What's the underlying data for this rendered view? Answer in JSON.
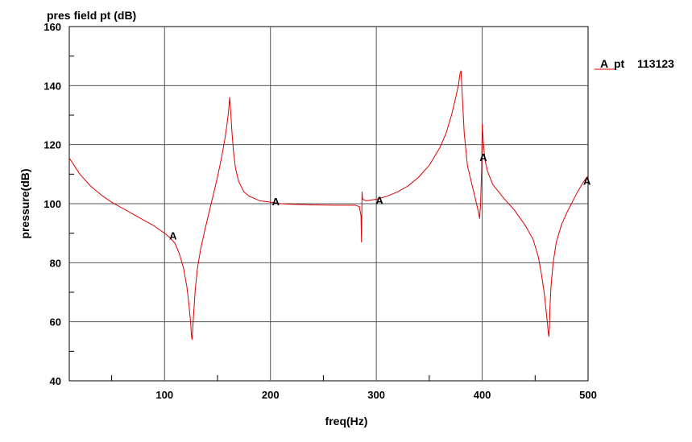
{
  "chart_data": {
    "type": "line",
    "title": "pres field pt (dB)",
    "xlabel": "freq(Hz)",
    "ylabel": "pressure(dB)",
    "xlim": [
      10,
      500
    ],
    "ylim": [
      40,
      160
    ],
    "x_ticks": [
      100,
      200,
      300,
      400,
      500
    ],
    "y_ticks": [
      40,
      60,
      80,
      100,
      120,
      140,
      160
    ],
    "grid": true,
    "legend_position": "right",
    "legend": {
      "marker": "A",
      "name": "pt",
      "id": "113123"
    },
    "series": [
      {
        "name": "pt",
        "color": "#dd0000",
        "marker_label": "A",
        "x": [
          10,
          20,
          30,
          40,
          50,
          60,
          70,
          80,
          90,
          100,
          105,
          110,
          114,
          118,
          121,
          123,
          124.5,
          125.5,
          126,
          126.5,
          127.5,
          129,
          131,
          134,
          138,
          142,
          146,
          150,
          154,
          157,
          159,
          160.5,
          161.5,
          162.5,
          163.5,
          165,
          167,
          170,
          175,
          180,
          190,
          200,
          210,
          220,
          240,
          260,
          280,
          284,
          285.5,
          286,
          286.5,
          287,
          290,
          300,
          310,
          320,
          330,
          340,
          350,
          360,
          366,
          371,
          375,
          377.5,
          379,
          380,
          381,
          383,
          386,
          390,
          394,
          396.5,
          397.5,
          398.5,
          399.5,
          400,
          401,
          402.5,
          405,
          410,
          420,
          430,
          440,
          448,
          453,
          456,
          458.5,
          460,
          461.5,
          462.5,
          463,
          463.5,
          464,
          465,
          467,
          470,
          475,
          480,
          485,
          490,
          495,
          500
        ],
        "y": [
          115.5,
          110,
          106,
          103,
          100.5,
          98.5,
          96.5,
          94.5,
          92.5,
          90,
          88.5,
          86.5,
          83,
          78,
          72,
          66,
          60,
          55,
          54,
          57,
          63,
          71,
          78,
          84.5,
          91,
          97,
          103,
          109,
          116,
          122,
          127,
          131.5,
          136,
          131,
          125,
          118,
          112,
          107.5,
          104,
          102.5,
          101,
          100.5,
          100,
          99.8,
          99.6,
          99.5,
          99.5,
          99,
          96,
          87,
          104,
          101.5,
          101,
          101.5,
          102.5,
          104,
          106,
          109,
          113,
          119,
          124,
          130,
          136,
          140,
          144,
          145,
          138,
          124,
          113,
          107,
          101,
          97,
          95,
          100,
          112,
          127,
          121,
          115,
          111,
          106.5,
          102,
          98,
          93,
          88,
          82,
          76,
          70,
          65,
          60,
          56,
          55,
          58,
          65,
          72,
          80,
          87,
          93,
          97,
          100.5,
          104,
          107,
          109.5
        ]
      }
    ],
    "markers": [
      {
        "label": "A",
        "x": 108,
        "y": 89
      },
      {
        "label": "A",
        "x": 205,
        "y": 100.5
      },
      {
        "label": "A",
        "x": 303,
        "y": 101
      },
      {
        "label": "A",
        "x": 401,
        "y": 115.5
      },
      {
        "label": "A",
        "x": 499,
        "y": 107.5
      }
    ]
  }
}
